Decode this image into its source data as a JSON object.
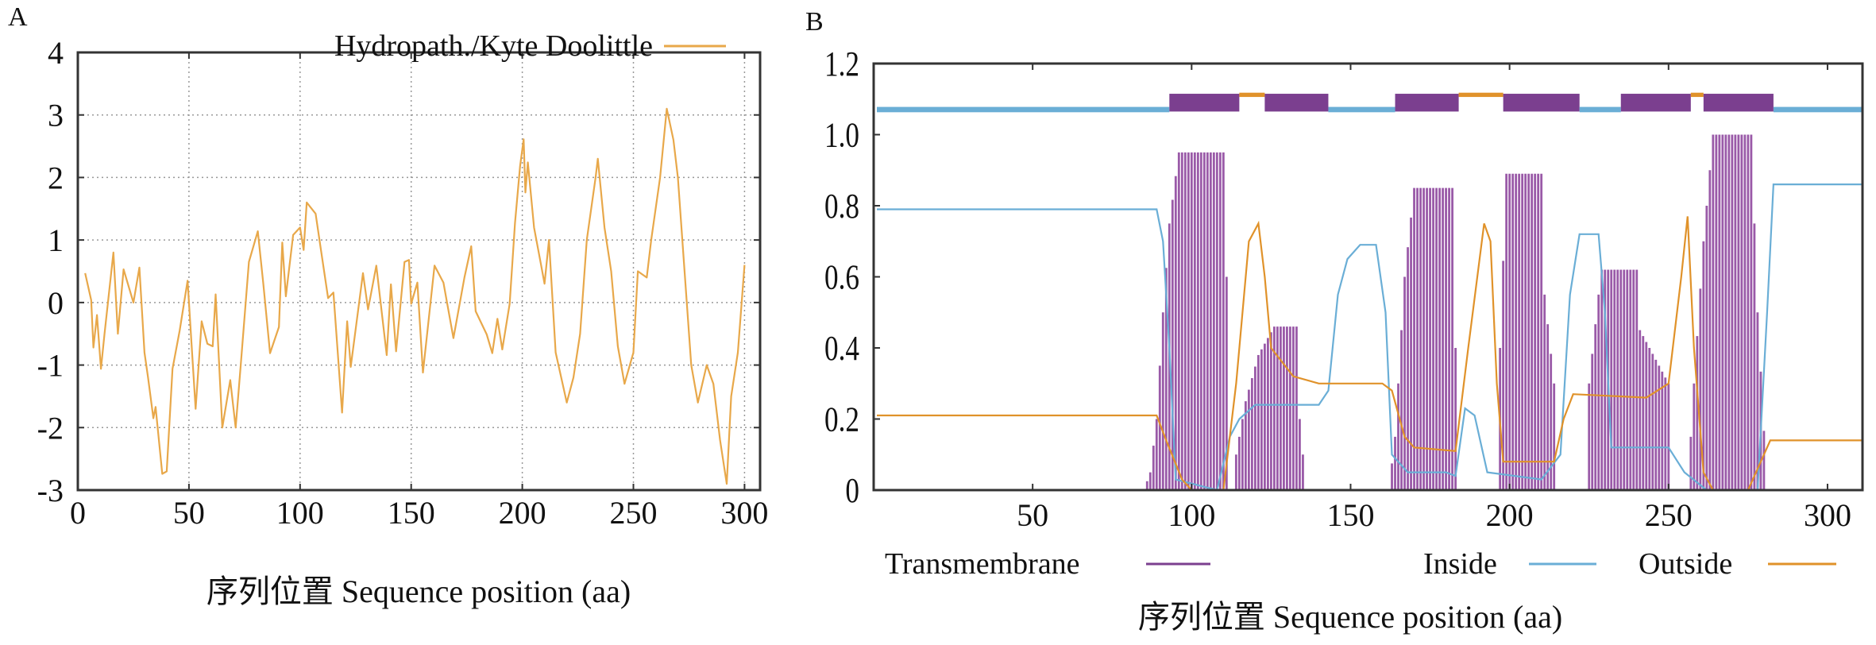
{
  "chart_data": [
    {
      "panel_label": "A",
      "type": "line",
      "title": "",
      "xlabel": "序列位置 Sequence position (aa)",
      "ylabel": "",
      "xlim": [
        0,
        307
      ],
      "ylim": [
        -3,
        4
      ],
      "xticks": [
        "0",
        "50",
        "100",
        "150",
        "200",
        "250",
        "300"
      ],
      "yticks": [
        "-3",
        "-2",
        "-1",
        "0",
        "1",
        "2",
        "3",
        "4"
      ],
      "grid": true,
      "legend": {
        "position": "top-right",
        "entries": [
          "Hydropath./Kyte Doolittle"
        ]
      },
      "series": [
        {
          "name": "Hydropath./Kyte Doolittle",
          "color": "#e8a84a",
          "points": [
            [
              3.3,
              0.47
            ],
            [
              6,
              0.04
            ],
            [
              7,
              -0.72
            ],
            [
              8.6,
              -0.2
            ],
            [
              10.4,
              -1.06
            ],
            [
              12,
              -0.5
            ],
            [
              16,
              0.8
            ],
            [
              18,
              -0.5
            ],
            [
              20.6,
              0.53
            ],
            [
              25,
              0.0
            ],
            [
              27.7,
              0.56
            ],
            [
              30,
              -0.8
            ],
            [
              31.6,
              -1.2
            ],
            [
              34,
              -1.85
            ],
            [
              35,
              -1.67
            ],
            [
              38,
              -2.74
            ],
            [
              40,
              -2.7
            ],
            [
              42.6,
              -1.06
            ],
            [
              45.8,
              -0.45
            ],
            [
              49.4,
              0.35
            ],
            [
              51,
              -0.57
            ],
            [
              53,
              -1.7
            ],
            [
              55.7,
              -0.3
            ],
            [
              58.3,
              -0.66
            ],
            [
              60.7,
              -0.7
            ],
            [
              62,
              0.13
            ],
            [
              65,
              -2.0
            ],
            [
              68.6,
              -1.24
            ],
            [
              71,
              -2.0
            ],
            [
              73.3,
              -1.0
            ],
            [
              77,
              0.65
            ],
            [
              81,
              1.14
            ],
            [
              83.5,
              0.29
            ],
            [
              86.5,
              -0.81
            ],
            [
              90.5,
              -0.39
            ],
            [
              92,
              0.96
            ],
            [
              93.6,
              0.1
            ],
            [
              96.9,
              1.08
            ],
            [
              100,
              1.2
            ],
            [
              101.6,
              0.84
            ],
            [
              103,
              1.6
            ],
            [
              107,
              1.42
            ],
            [
              109.4,
              0.84
            ],
            [
              112.6,
              0.07
            ],
            [
              115,
              0.16
            ],
            [
              118.9,
              -1.76
            ],
            [
              121.2,
              -0.3
            ],
            [
              122.8,
              -1.03
            ],
            [
              128.3,
              0.47
            ],
            [
              130.6,
              -0.11
            ],
            [
              134.3,
              0.59
            ],
            [
              139,
              -0.84
            ],
            [
              140.9,
              0.29
            ],
            [
              143.2,
              -0.78
            ],
            [
              147,
              0.65
            ],
            [
              149,
              0.68
            ],
            [
              150,
              -0.02
            ],
            [
              152.8,
              0.32
            ],
            [
              155.3,
              -1.12
            ],
            [
              160.5,
              0.59
            ],
            [
              164.5,
              0.32
            ],
            [
              169,
              -0.57
            ],
            [
              174,
              0.41
            ],
            [
              177,
              0.9
            ],
            [
              179,
              -0.14
            ],
            [
              184,
              -0.51
            ],
            [
              186.5,
              -0.81
            ],
            [
              188.8,
              -0.26
            ],
            [
              191,
              -0.75
            ],
            [
              194.3,
              -0.02
            ],
            [
              196.7,
              1.27
            ],
            [
              199,
              2.18
            ],
            [
              200.6,
              2.61
            ],
            [
              201.4,
              1.76
            ],
            [
              202.5,
              2.24
            ],
            [
              205.3,
              1.2
            ],
            [
              208.5,
              0.59
            ],
            [
              210,
              0.3
            ],
            [
              212,
              1.0
            ],
            [
              215,
              -0.8
            ],
            [
              220,
              -1.6
            ],
            [
              223,
              -1.2
            ],
            [
              226,
              -0.5
            ],
            [
              229,
              1.0
            ],
            [
              233,
              2.0
            ],
            [
              234,
              2.3
            ],
            [
              237,
              1.2
            ],
            [
              240,
              0.5
            ],
            [
              243,
              -0.7
            ],
            [
              246,
              -1.3
            ],
            [
              250,
              -0.8
            ],
            [
              252,
              0.5
            ],
            [
              256,
              0.4
            ],
            [
              258,
              1.0
            ],
            [
              262,
              2.0
            ],
            [
              265,
              3.1
            ],
            [
              268,
              2.6
            ],
            [
              270,
              2.0
            ],
            [
              273,
              0.5
            ],
            [
              276,
              -1.0
            ],
            [
              279,
              -1.6
            ],
            [
              283,
              -1.0
            ],
            [
              286,
              -1.3
            ],
            [
              289,
              -2.2
            ],
            [
              292,
              -2.9
            ],
            [
              294,
              -1.5
            ],
            [
              297,
              -0.8
            ],
            [
              300,
              0.6
            ]
          ]
        }
      ]
    },
    {
      "panel_label": "B",
      "type": "line",
      "title": "",
      "xlabel": "序列位置 Sequence position (aa)",
      "ylabel": "",
      "xlim": [
        0,
        311
      ],
      "ylim": [
        0,
        1.2
      ],
      "xticks": [
        "50",
        "100",
        "150",
        "200",
        "250",
        "300"
      ],
      "yticks": [
        "0",
        "0.2",
        "0.4",
        "0.6",
        "0.8",
        "1.0",
        "1.2"
      ],
      "grid": false,
      "legend": {
        "position": "bottom",
        "entries": [
          "Transmembrane",
          "Inside",
          "Outside"
        ]
      },
      "colors": {
        "Transmembrane": "#7b3f8f",
        "Inside": "#6aaed6",
        "Outside": "#e0922a"
      },
      "topology": [
        {
          "label": "Inside",
          "start": 1,
          "end": 93
        },
        {
          "label": "Transmembrane",
          "start": 93,
          "end": 115
        },
        {
          "label": "Outside",
          "start": 115,
          "end": 123
        },
        {
          "label": "Transmembrane",
          "start": 123,
          "end": 143
        },
        {
          "label": "Inside",
          "start": 143,
          "end": 164
        },
        {
          "label": "Transmembrane",
          "start": 164,
          "end": 184
        },
        {
          "label": "Outside",
          "start": 184,
          "end": 198
        },
        {
          "label": "Transmembrane",
          "start": 198,
          "end": 222
        },
        {
          "label": "Inside",
          "start": 222,
          "end": 235
        },
        {
          "label": "Transmembrane",
          "start": 235,
          "end": 257
        },
        {
          "label": "Outside",
          "start": 257,
          "end": 261
        },
        {
          "label": "Transmembrane",
          "start": 261,
          "end": 283
        },
        {
          "label": "Inside",
          "start": 283,
          "end": 311
        }
      ],
      "series": [
        {
          "name": "Transmembrane",
          "style": "bars",
          "points": [
            [
              85,
              0
            ],
            [
              87,
              0.05
            ],
            [
              89,
              0.2
            ],
            [
              91,
              0.5
            ],
            [
              93,
              0.75
            ],
            [
              96,
              0.95
            ],
            [
              110,
              0.95
            ],
            [
              111,
              0.6
            ],
            [
              112,
              0
            ],
            [
              113,
              0
            ],
            [
              114,
              0.1
            ],
            [
              117,
              0.25
            ],
            [
              121,
              0.38
            ],
            [
              126,
              0.46
            ],
            [
              133,
              0.46
            ],
            [
              134,
              0.2
            ],
            [
              136,
              0
            ],
            [
              162,
              0
            ],
            [
              164,
              0.15
            ],
            [
              167,
              0.6
            ],
            [
              170,
              0.85
            ],
            [
              182,
              0.85
            ],
            [
              183,
              0.4
            ],
            [
              184,
              0
            ],
            [
              196,
              0
            ],
            [
              197,
              0.4
            ],
            [
              199,
              0.89
            ],
            [
              210,
              0.89
            ],
            [
              211,
              0.55
            ],
            [
              214,
              0.3
            ],
            [
              215,
              0
            ],
            [
              224,
              0
            ],
            [
              225,
              0.3
            ],
            [
              228,
              0.55
            ],
            [
              229,
              0.62
            ],
            [
              240,
              0.62
            ],
            [
              241,
              0.45
            ],
            [
              250,
              0.3
            ],
            [
              251,
              0
            ],
            [
              256,
              0
            ],
            [
              258,
              0.3
            ],
            [
              261,
              0.7
            ],
            [
              264,
              1.0
            ],
            [
              276,
              1.0
            ],
            [
              278,
              0.5
            ],
            [
              281,
              0
            ],
            [
              311,
              0
            ]
          ]
        },
        {
          "name": "Inside",
          "style": "line",
          "points": [
            [
              1,
              0.79
            ],
            [
              89,
              0.79
            ],
            [
              91,
              0.7
            ],
            [
              93,
              0.4
            ],
            [
              95,
              0.03
            ],
            [
              108,
              0.0
            ],
            [
              112,
              0.15
            ],
            [
              115,
              0.2
            ],
            [
              120,
              0.24
            ],
            [
              140,
              0.24
            ],
            [
              143,
              0.28
            ],
            [
              146,
              0.55
            ],
            [
              149,
              0.65
            ],
            [
              153,
              0.69
            ],
            [
              158,
              0.69
            ],
            [
              161,
              0.5
            ],
            [
              163,
              0.1
            ],
            [
              168,
              0.05
            ],
            [
              180,
              0.05
            ],
            [
              183,
              0.04
            ],
            [
              186,
              0.23
            ],
            [
              189,
              0.21
            ],
            [
              193,
              0.05
            ],
            [
              210,
              0.03
            ],
            [
              216,
              0.1
            ],
            [
              219,
              0.55
            ],
            [
              222,
              0.72
            ],
            [
              228,
              0.72
            ],
            [
              230,
              0.5
            ],
            [
              232,
              0.12
            ],
            [
              250,
              0.12
            ],
            [
              255,
              0.05
            ],
            [
              262,
              0.0
            ],
            [
              278,
              0.0
            ],
            [
              281,
              0.5
            ],
            [
              283,
              0.86
            ],
            [
              311,
              0.86
            ]
          ]
        },
        {
          "name": "Outside",
          "style": "line",
          "points": [
            [
              1,
              0.21
            ],
            [
              89,
              0.21
            ],
            [
              92,
              0.14
            ],
            [
              97,
              0.03
            ],
            [
              100,
              0.0
            ],
            [
              110,
              0.0
            ],
            [
              114,
              0.3
            ],
            [
              118,
              0.7
            ],
            [
              121,
              0.75
            ],
            [
              123,
              0.6
            ],
            [
              125,
              0.4
            ],
            [
              132,
              0.32
            ],
            [
              140,
              0.3
            ],
            [
              160,
              0.3
            ],
            [
              163,
              0.28
            ],
            [
              167,
              0.15
            ],
            [
              170,
              0.12
            ],
            [
              183,
              0.11
            ],
            [
              187,
              0.4
            ],
            [
              192,
              0.75
            ],
            [
              194,
              0.7
            ],
            [
              196,
              0.3
            ],
            [
              198,
              0.08
            ],
            [
              214,
              0.08
            ],
            [
              217,
              0.2
            ],
            [
              220,
              0.27
            ],
            [
              243,
              0.26
            ],
            [
              250,
              0.3
            ],
            [
              254,
              0.6
            ],
            [
              256,
              0.77
            ],
            [
              258,
              0.4
            ],
            [
              261,
              0.05
            ],
            [
              264,
              0.0
            ],
            [
              275,
              0.0
            ],
            [
              280,
              0.1
            ],
            [
              282,
              0.14
            ],
            [
              311,
              0.14
            ]
          ]
        }
      ]
    }
  ]
}
